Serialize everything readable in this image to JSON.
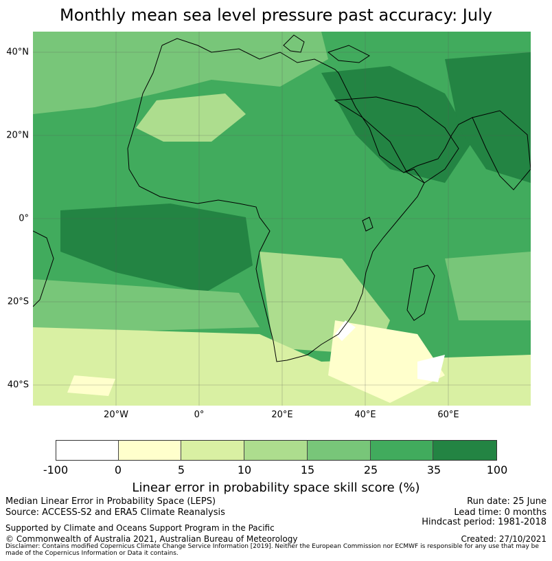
{
  "title": "Monthly mean sea level pressure past accuracy: July",
  "map": {
    "lat_labels": [
      "40°N",
      "20°N",
      "0°",
      "20°S",
      "40°S"
    ],
    "lon_labels": [
      "20°W",
      "0°",
      "20°E",
      "40°E",
      "60°E"
    ],
    "lat_range": [
      -45,
      45
    ],
    "lon_range": [
      -40,
      80
    ]
  },
  "colorbar": {
    "ticks": [
      "-100",
      "0",
      "5",
      "10",
      "15",
      "25",
      "35",
      "100"
    ],
    "colors": [
      "#ffffff",
      "#ffffcc",
      "#d9f0a3",
      "#addd8e",
      "#78c679",
      "#41ab5d",
      "#238443"
    ],
    "label": "Linear error in probability space skill score (%)"
  },
  "footer": {
    "line1": "Median Linear Error in Probability Space (LEPS)",
    "line2": "Source: ACCESS-S2 and ERA5 Climate Reanalysis",
    "run_date": "Run date: 25 June",
    "lead_time": "Lead time: 0 months",
    "hindcast": "Hindcast period: 1981-2018",
    "supported": "Supported by Climate and Oceans Support Program in the Pacific",
    "copyright": "© Commonwealth of Australia 2021, Australian Bureau of Meteorology",
    "created": "Created: 27/10/2021",
    "disclaimer": "Disclaimer: Contains modified Copernicus Climate Change Service Information [2019]. Neither the European Commission nor ECMWF is responsible for any use that may be made of the Copernicus Information or Data it contains."
  }
}
